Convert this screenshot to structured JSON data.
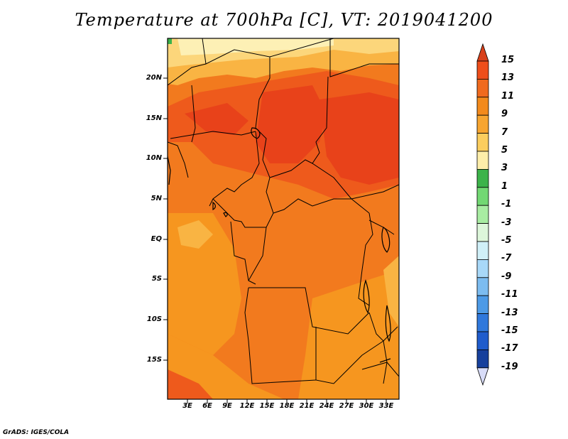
{
  "title": "Temperature at 700hPa [C], VT: 2019041200",
  "credit": "GrADS: IGES/COLA",
  "lat_labels": [
    "20N",
    "15N",
    "10N",
    "5N",
    "EQ",
    "5S",
    "10S",
    "15S"
  ],
  "lon_labels": [
    "3E",
    "6E",
    "9E",
    "12E",
    "15E",
    "18E",
    "21E",
    "24E",
    "27E",
    "30E",
    "33E"
  ],
  "colorbar": {
    "labels": [
      "15",
      "13",
      "11",
      "9",
      "7",
      "5",
      "3",
      "1",
      "-1",
      "-3",
      "-5",
      "-7",
      "-9",
      "-11",
      "-13",
      "-15",
      "-17",
      "-19"
    ],
    "colors": [
      "#d8401a",
      "#ee4e1a",
      "#f06a1e",
      "#f38a1c",
      "#f7a530",
      "#fbcd5e",
      "#fdeeaa",
      "#3cb34a",
      "#72d873",
      "#a8eca2",
      "#ddf6da",
      "#d0f0f8",
      "#a8d8f8",
      "#7cbcf0",
      "#4d9ae6",
      "#2f78dc",
      "#1f5ccc",
      "#17409c",
      "#0b2480"
    ]
  },
  "map_colors": {
    "hot": "#e8421a",
    "warm": "#ee5a1c",
    "mid": "#f27a1e",
    "orange": "#f6961f",
    "light": "#f9b443",
    "pale": "#fcd67b",
    "cream": "#fdf0b5",
    "green": "#3cb34a"
  }
}
